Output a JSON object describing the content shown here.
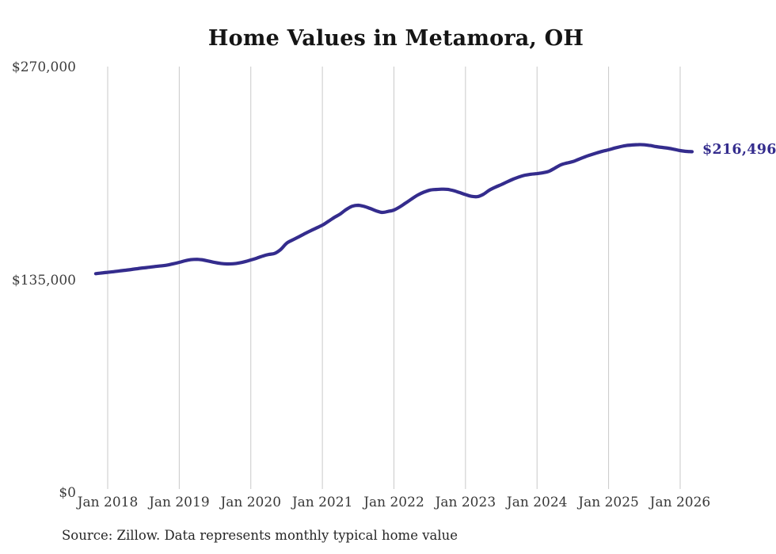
{
  "chart": {
    "title": "Home Values in Metamora, OH",
    "source": "Source: Zillow. Data represents monthly typical home value",
    "end_label": "$216,496",
    "line_color": "#342c8d",
    "grid_color": "#c9c9c9"
  },
  "chart_data": {
    "type": "line",
    "title": "Home Values in Metamora, OH",
    "series_name": "Typical home value (monthly, Zillow)",
    "grid": "vertical-only",
    "legend": "none",
    "ylim": [
      0,
      270000
    ],
    "yticks": [
      {
        "value": 0,
        "label": "$0"
      },
      {
        "value": 135000,
        "label": "$135,000"
      },
      {
        "value": 270000,
        "label": "$270,000"
      }
    ],
    "xticks": [
      {
        "month": "2018-01",
        "label": "Jan 2018"
      },
      {
        "month": "2019-01",
        "label": "Jan 2019"
      },
      {
        "month": "2020-01",
        "label": "Jan 2020"
      },
      {
        "month": "2021-01",
        "label": "Jan 2021"
      },
      {
        "month": "2022-01",
        "label": "Jan 2022"
      },
      {
        "month": "2023-01",
        "label": "Jan 2023"
      },
      {
        "month": "2024-01",
        "label": "Jan 2024"
      },
      {
        "month": "2025-01",
        "label": "Jan 2025"
      },
      {
        "month": "2026-01",
        "label": "Jan 2026"
      }
    ],
    "latest_value": 216496,
    "latest_label": "$216,496",
    "x": [
      "2017-11",
      "2017-12",
      "2018-01",
      "2018-02",
      "2018-03",
      "2018-04",
      "2018-05",
      "2018-06",
      "2018-07",
      "2018-08",
      "2018-09",
      "2018-10",
      "2018-11",
      "2018-12",
      "2019-01",
      "2019-02",
      "2019-03",
      "2019-04",
      "2019-05",
      "2019-06",
      "2019-07",
      "2019-08",
      "2019-09",
      "2019-10",
      "2019-11",
      "2019-12",
      "2020-01",
      "2020-02",
      "2020-03",
      "2020-04",
      "2020-05",
      "2020-06",
      "2020-07",
      "2020-08",
      "2020-09",
      "2020-10",
      "2020-11",
      "2020-12",
      "2021-01",
      "2021-02",
      "2021-03",
      "2021-04",
      "2021-05",
      "2021-06",
      "2021-07",
      "2021-08",
      "2021-09",
      "2021-10",
      "2021-11",
      "2021-12",
      "2022-01",
      "2022-02",
      "2022-03",
      "2022-04",
      "2022-05",
      "2022-06",
      "2022-07",
      "2022-08",
      "2022-09",
      "2022-10",
      "2022-11",
      "2022-12",
      "2023-01",
      "2023-02",
      "2023-03",
      "2023-04",
      "2023-05",
      "2023-06",
      "2023-07",
      "2023-08",
      "2023-09",
      "2023-10",
      "2023-11",
      "2023-12",
      "2024-01",
      "2024-02",
      "2024-03",
      "2024-04",
      "2024-05",
      "2024-06",
      "2024-07",
      "2024-08",
      "2024-09",
      "2024-10",
      "2024-11",
      "2024-12",
      "2025-01",
      "2025-02",
      "2025-03",
      "2025-04",
      "2025-05",
      "2025-06",
      "2025-07",
      "2025-08",
      "2025-09",
      "2025-10",
      "2025-11",
      "2025-12",
      "2026-01",
      "2026-02",
      "2026-03"
    ],
    "values": [
      139100,
      139600,
      140000,
      140400,
      140900,
      141300,
      141800,
      142300,
      142800,
      143200,
      143700,
      144100,
      144600,
      145400,
      146300,
      147300,
      148000,
      148200,
      147800,
      147000,
      146200,
      145600,
      145300,
      145400,
      145900,
      146700,
      147800,
      149000,
      150300,
      151300,
      152000,
      154400,
      158400,
      160500,
      162400,
      164400,
      166300,
      168100,
      169900,
      172300,
      174800,
      177000,
      179800,
      181900,
      182500,
      181800,
      180500,
      179000,
      178000,
      178600,
      179500,
      181500,
      184000,
      186600,
      189000,
      190800,
      192100,
      192500,
      192700,
      192600,
      191800,
      190600,
      189300,
      188200,
      188000,
      189500,
      192100,
      194000,
      195600,
      197400,
      199100,
      200500,
      201600,
      202200,
      202600,
      203200,
      204100,
      206100,
      208200,
      209300,
      210200,
      211700,
      213200,
      214500,
      215700,
      216800,
      217700,
      218800,
      219700,
      220400,
      220800,
      221000,
      220900,
      220400,
      219700,
      219200,
      218700,
      218000,
      217200,
      216700,
      216496
    ]
  }
}
